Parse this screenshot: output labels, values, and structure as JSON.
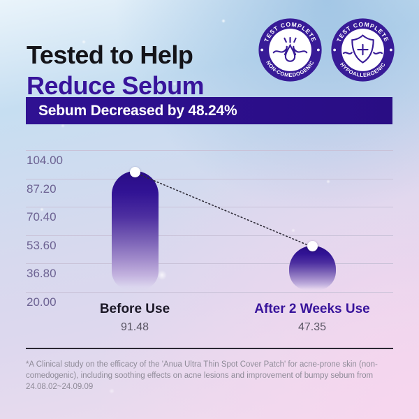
{
  "header": {
    "title_line1": "Tested to Help",
    "title_line2": "Reduce Sebum",
    "badges": [
      {
        "top_text": "TEST COMPLETE",
        "bottom_text": "NON-COMEDOGENIC",
        "icon": "sebum-pore-icon"
      },
      {
        "top_text": "TEST COMPLETE",
        "bottom_text": "HYPOALLERGENIC",
        "icon": "shield-plus-icon"
      }
    ]
  },
  "banner": {
    "text": "Sebum Decreased by 48.24%",
    "bg_color": "#2c0f8e",
    "text_color": "#ffffff"
  },
  "chart_data": {
    "type": "bar",
    "categories": [
      "Before Use",
      "After 2 Weeks Use"
    ],
    "values": [
      91.48,
      47.35
    ],
    "value_labels": [
      "91.48",
      "47.35"
    ],
    "category_label_colors": [
      "#1b1826",
      "#38149b"
    ],
    "yticks": [
      104.0,
      87.2,
      70.4,
      53.6,
      36.8,
      20.0
    ],
    "ytick_labels": [
      "104.00",
      "87.20",
      "70.40",
      "53.60",
      "36.80",
      "20.00"
    ],
    "ylim": [
      20,
      104
    ],
    "grid": true,
    "legend": "none",
    "connector": "dotted line between bar-top data points",
    "bar_color_top": "#2a0d86",
    "bar_color_fade": "#d8cdee",
    "title": "Sebum Decreased by 48.24%"
  },
  "footnote": {
    "text": "*A Clinical study on the efficacy of the 'Anua Ultra Thin Spot Cover Patch' for acne-prone skin (non-comedogenic),  including soothing effects on acne lesions and improvement of bumpy sebum from 24.08.02~24.09.09"
  },
  "colors": {
    "accent_purple": "#38149b",
    "banner_purple": "#2c0f8e",
    "badge_ring": "#381b97",
    "ytick_text": "#6c6292",
    "gridline": "#c9c2d8"
  }
}
